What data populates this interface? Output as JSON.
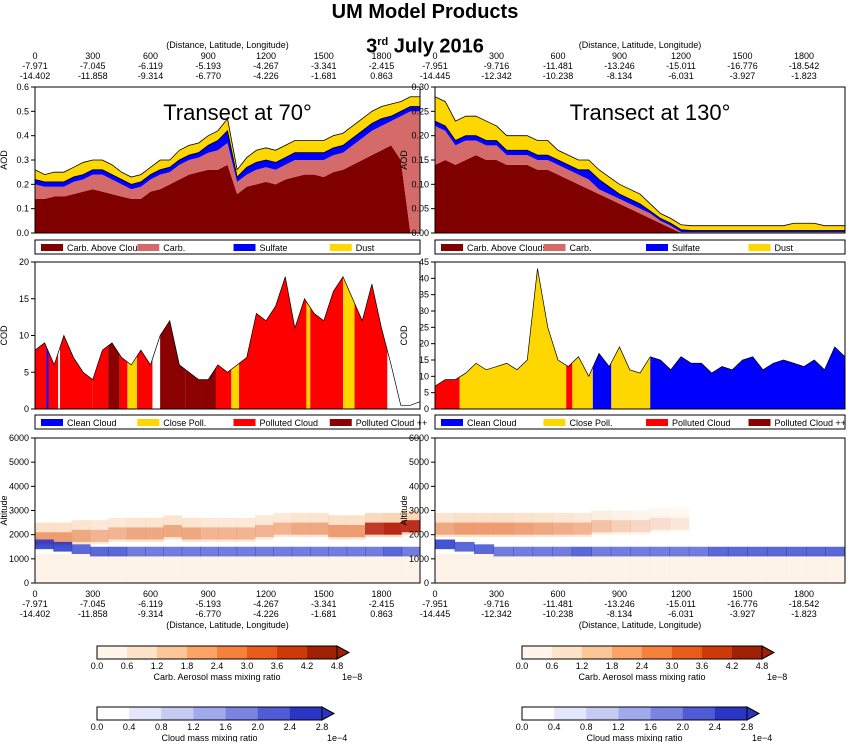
{
  "header": {
    "title": "UM Model Products",
    "date_day": "3",
    "date_suffix": "rd",
    "date_rest": "July 2016"
  },
  "axis_headers": {
    "top_label": "(Distance, Latitude, Longitude)",
    "left": {
      "distance": [
        "0",
        "300",
        "600",
        "900",
        "1200",
        "1500",
        "1800"
      ],
      "latitude": [
        "-7.971",
        "-7.045",
        "-6.119",
        "-5.193",
        "-4.267",
        "-3.341",
        "-2.415"
      ],
      "longitude": [
        "-14.402",
        "-11.858",
        "-9.314",
        "-6.770",
        "-4.226",
        "-1.681",
        "0.863"
      ]
    },
    "right": {
      "distance": [
        "0",
        "300",
        "600",
        "900",
        "1200",
        "1500",
        "1800"
      ],
      "latitude": [
        "-7.951",
        "-9.716",
        "-11.481",
        "-13.246",
        "-15.011",
        "-16.776",
        "-18.542"
      ],
      "longitude": [
        "-14.445",
        "-12.342",
        "-10.238",
        "-8.134",
        "-6.031",
        "-3.927",
        "-1.823"
      ]
    }
  },
  "colors": {
    "carb_above": "#800000",
    "carb": "#d46a6a",
    "sulfate": "#0000ff",
    "dust": "#ffd700",
    "clean_cloud": "#0000ff",
    "close_poll": "#ffd700",
    "polluted": "#ff0000",
    "polluted_pp": "#8b0000"
  },
  "colorbars": {
    "carb": {
      "label": "Carb. Aerosol mass mixing ratio",
      "ticks": [
        "0.0",
        "0.6",
        "1.2",
        "1.8",
        "2.4",
        "3.0",
        "3.6",
        "4.2",
        "4.8"
      ],
      "exp": "1e−8"
    },
    "cloud": {
      "label": "Cloud mass mixing ratio",
      "ticks": [
        "0.0",
        "0.4",
        "0.8",
        "1.2",
        "1.6",
        "2.0",
        "2.4",
        "2.8"
      ],
      "exp": "1e−4"
    }
  },
  "chart_data": [
    {
      "type": "area",
      "title": "Transect at 70°",
      "xlabel": "",
      "ylabel": "AOD",
      "xlim": [
        0,
        2000
      ],
      "ylim": [
        0,
        0.6
      ],
      "yticks": [
        "0.0",
        "0.1",
        "0.2",
        "0.3",
        "0.4",
        "0.5",
        "0.6"
      ],
      "legend": [
        "Carb. Above Clouds",
        "Carb.",
        "Sulfate",
        "Dust"
      ],
      "x": [
        0,
        50,
        100,
        150,
        200,
        250,
        300,
        350,
        400,
        450,
        500,
        550,
        600,
        650,
        700,
        750,
        800,
        850,
        900,
        950,
        1000,
        1050,
        1100,
        1150,
        1200,
        1250,
        1300,
        1350,
        1400,
        1450,
        1500,
        1550,
        1600,
        1650,
        1700,
        1750,
        1800,
        1850,
        1900,
        1950,
        2000
      ],
      "series": [
        {
          "name": "Carb. Above Clouds",
          "values": [
            0.14,
            0.14,
            0.15,
            0.15,
            0.16,
            0.17,
            0.18,
            0.17,
            0.16,
            0.15,
            0.14,
            0.14,
            0.17,
            0.18,
            0.2,
            0.22,
            0.24,
            0.25,
            0.26,
            0.26,
            0.28,
            0.16,
            0.19,
            0.2,
            0.21,
            0.2,
            0.22,
            0.23,
            0.24,
            0.24,
            0.23,
            0.25,
            0.26,
            0.28,
            0.3,
            0.32,
            0.34,
            0.36,
            0.3,
            0,
            0
          ]
        },
        {
          "name": "Carb.",
          "values": [
            0.06,
            0.05,
            0.04,
            0.04,
            0.05,
            0.05,
            0.06,
            0.07,
            0.06,
            0.05,
            0.04,
            0.05,
            0.05,
            0.06,
            0.05,
            0.06,
            0.06,
            0.06,
            0.07,
            0.08,
            0.09,
            0.05,
            0.05,
            0.06,
            0.06,
            0.06,
            0.06,
            0.07,
            0.06,
            0.06,
            0.07,
            0.07,
            0.07,
            0.08,
            0.09,
            0.1,
            0.1,
            0.1,
            0.18,
            0.5,
            0.5
          ]
        },
        {
          "name": "Sulfate",
          "values": [
            0.02,
            0.02,
            0.02,
            0.02,
            0.02,
            0.02,
            0.02,
            0.02,
            0.02,
            0.02,
            0.02,
            0.02,
            0.02,
            0.02,
            0.02,
            0.02,
            0.02,
            0.02,
            0.03,
            0.04,
            0.05,
            0.02,
            0.03,
            0.03,
            0.03,
            0.03,
            0.03,
            0.03,
            0.03,
            0.03,
            0.03,
            0.03,
            0.03,
            0.03,
            0.03,
            0.03,
            0.03,
            0.02,
            0.02,
            0.02,
            0.02
          ]
        },
        {
          "name": "Dust",
          "values": [
            0.04,
            0.03,
            0.04,
            0.04,
            0.04,
            0.05,
            0.04,
            0.04,
            0.04,
            0.03,
            0.03,
            0.03,
            0.03,
            0.04,
            0.03,
            0.04,
            0.04,
            0.04,
            0.04,
            0.04,
            0.05,
            0.03,
            0.04,
            0.05,
            0.05,
            0.05,
            0.05,
            0.05,
            0.05,
            0.05,
            0.05,
            0.05,
            0.05,
            0.05,
            0.05,
            0.05,
            0.05,
            0.05,
            0.04,
            0.04,
            0.04
          ]
        }
      ]
    },
    {
      "type": "area",
      "title": "Transect at 130°",
      "xlabel": "",
      "ylabel": "AOD",
      "xlim": [
        0,
        2000
      ],
      "ylim": [
        0,
        0.3
      ],
      "yticks": [
        "0.00",
        "0.05",
        "0.10",
        "0.15",
        "0.20",
        "0.25",
        "0.30"
      ],
      "legend": [
        "Carb. Above Clouds",
        "Carb.",
        "Sulfate",
        "Dust"
      ],
      "x": [
        0,
        50,
        100,
        150,
        200,
        250,
        300,
        350,
        400,
        450,
        500,
        550,
        600,
        650,
        700,
        750,
        800,
        850,
        900,
        950,
        1000,
        1050,
        1100,
        1150,
        1200,
        1250,
        1300,
        1350,
        1400,
        1450,
        1500,
        1550,
        1600,
        1650,
        1700,
        1750,
        1800,
        1850,
        1900,
        1950,
        2000
      ],
      "series": [
        {
          "name": "Carb. Above Clouds",
          "values": [
            0.14,
            0.15,
            0.14,
            0.15,
            0.16,
            0.15,
            0.15,
            0.14,
            0.14,
            0.14,
            0.13,
            0.13,
            0.12,
            0.11,
            0.1,
            0.09,
            0.08,
            0.07,
            0.06,
            0.05,
            0.04,
            0.03,
            0.02,
            0.01,
            0,
            0,
            0,
            0,
            0,
            0,
            0,
            0,
            0,
            0,
            0,
            0,
            0,
            0,
            0,
            0,
            0
          ]
        },
        {
          "name": "Carb.",
          "values": [
            0.08,
            0.06,
            0.04,
            0.04,
            0.03,
            0.03,
            0.03,
            0.02,
            0.02,
            0.02,
            0.02,
            0.02,
            0.02,
            0.02,
            0.02,
            0.02,
            0.01,
            0.01,
            0.01,
            0.01,
            0.01,
            0.01,
            0.005,
            0.005,
            0.002,
            0.002,
            0.002,
            0.002,
            0.002,
            0.002,
            0.002,
            0.002,
            0.002,
            0.002,
            0.002,
            0.002,
            0.002,
            0.002,
            0.002,
            0.002,
            0.002
          ]
        },
        {
          "name": "Sulfate",
          "values": [
            0.01,
            0.01,
            0.01,
            0.01,
            0.01,
            0.01,
            0.01,
            0.01,
            0.01,
            0.01,
            0.01,
            0.01,
            0.01,
            0.01,
            0.01,
            0.02,
            0.02,
            0.015,
            0.01,
            0.01,
            0.01,
            0.005,
            0.005,
            0.005,
            0.005,
            0.003,
            0.003,
            0.003,
            0.003,
            0.003,
            0.003,
            0.003,
            0.003,
            0.003,
            0.003,
            0.003,
            0.003,
            0.003,
            0.003,
            0.003,
            0.003
          ]
        },
        {
          "name": "Dust",
          "values": [
            0.05,
            0.05,
            0.04,
            0.04,
            0.04,
            0.04,
            0.03,
            0.03,
            0.03,
            0.03,
            0.03,
            0.03,
            0.02,
            0.02,
            0.02,
            0.02,
            0.02,
            0.02,
            0.02,
            0.02,
            0.02,
            0.015,
            0.01,
            0.01,
            0.01,
            0.01,
            0.01,
            0.01,
            0.01,
            0.01,
            0.01,
            0.01,
            0.01,
            0.01,
            0.01,
            0.015,
            0.015,
            0.015,
            0.01,
            0.01,
            0.01
          ]
        }
      ]
    },
    {
      "type": "area",
      "title": "",
      "xlabel": "",
      "ylabel": "COD",
      "xlim": [
        0,
        2000
      ],
      "ylim": [
        0,
        20
      ],
      "yticks": [
        "0",
        "5",
        "10",
        "15",
        "20"
      ],
      "legend": [
        "Clean Cloud",
        "Close Poll.",
        "Polluted Cloud",
        "Polluted Cloud ++"
      ],
      "x": [
        0,
        50,
        100,
        150,
        200,
        250,
        300,
        350,
        400,
        450,
        500,
        550,
        600,
        650,
        700,
        750,
        800,
        850,
        900,
        950,
        1000,
        1050,
        1100,
        1150,
        1200,
        1250,
        1300,
        1350,
        1400,
        1450,
        1500,
        1550,
        1600,
        1650,
        1700,
        1750,
        1800,
        1850,
        1900,
        1950,
        2000
      ],
      "values": [
        8,
        9,
        6,
        10,
        7,
        5,
        4,
        8,
        9,
        7,
        6,
        8,
        6,
        10,
        12,
        6,
        5,
        4,
        4,
        6,
        5,
        6,
        7,
        13,
        12,
        14,
        18,
        11,
        15,
        13,
        12,
        16,
        18,
        15,
        12,
        17,
        11,
        6,
        0.5,
        0.5,
        1
      ],
      "segments": [
        {
          "from": 0,
          "to": 60,
          "cls": "Polluted Cloud"
        },
        {
          "from": 60,
          "to": 70,
          "cls": "Clean Cloud"
        },
        {
          "from": 70,
          "to": 120,
          "cls": "Polluted Cloud"
        },
        {
          "from": 130,
          "to": 300,
          "cls": "Polluted Cloud"
        },
        {
          "from": 300,
          "to": 380,
          "cls": "Polluted Cloud"
        },
        {
          "from": 380,
          "to": 440,
          "cls": "Polluted Cloud ++"
        },
        {
          "from": 440,
          "to": 480,
          "cls": "Polluted Cloud"
        },
        {
          "from": 480,
          "to": 530,
          "cls": "Close Poll."
        },
        {
          "from": 530,
          "to": 610,
          "cls": "Polluted Cloud"
        },
        {
          "from": 650,
          "to": 780,
          "cls": "Polluted Cloud ++"
        },
        {
          "from": 780,
          "to": 870,
          "cls": "Polluted Cloud ++"
        },
        {
          "from": 870,
          "to": 940,
          "cls": "Polluted Cloud ++"
        },
        {
          "from": 940,
          "to": 1020,
          "cls": "Polluted Cloud"
        },
        {
          "from": 1020,
          "to": 1060,
          "cls": "Close Poll."
        },
        {
          "from": 1060,
          "to": 1410,
          "cls": "Polluted Cloud"
        },
        {
          "from": 1410,
          "to": 1430,
          "cls": "Close Poll."
        },
        {
          "from": 1430,
          "to": 1600,
          "cls": "Polluted Cloud"
        },
        {
          "from": 1600,
          "to": 1660,
          "cls": "Close Poll."
        },
        {
          "from": 1660,
          "to": 1830,
          "cls": "Polluted Cloud"
        }
      ]
    },
    {
      "type": "area",
      "title": "",
      "xlabel": "",
      "ylabel": "COD",
      "xlim": [
        0,
        2000
      ],
      "ylim": [
        0,
        45
      ],
      "yticks": [
        "0",
        "5",
        "10",
        "15",
        "20",
        "25",
        "30",
        "35",
        "40",
        "45"
      ],
      "legend": [
        "Clean Cloud",
        "Close Poll.",
        "Polluted Cloud",
        "Polluted Cloud ++"
      ],
      "x": [
        0,
        50,
        100,
        150,
        200,
        250,
        300,
        350,
        400,
        450,
        500,
        550,
        600,
        650,
        700,
        750,
        800,
        850,
        900,
        950,
        1000,
        1050,
        1100,
        1150,
        1200,
        1250,
        1300,
        1350,
        1400,
        1450,
        1500,
        1550,
        1600,
        1650,
        1700,
        1750,
        1800,
        1850,
        1900,
        1950,
        2000
      ],
      "values": [
        7,
        9,
        9,
        11,
        14,
        12,
        13,
        14,
        12,
        15,
        43,
        25,
        15,
        13,
        16,
        10,
        17,
        13,
        19,
        12,
        11,
        16,
        15,
        12,
        16,
        14,
        14,
        11,
        13,
        12,
        15,
        16,
        12,
        14,
        15,
        14,
        13,
        15,
        12,
        19,
        16
      ],
      "segments": [
        {
          "from": 0,
          "to": 120,
          "cls": "Polluted Cloud"
        },
        {
          "from": 120,
          "to": 640,
          "cls": "Close Poll."
        },
        {
          "from": 640,
          "to": 670,
          "cls": "Polluted Cloud"
        },
        {
          "from": 670,
          "to": 770,
          "cls": "Close Poll."
        },
        {
          "from": 770,
          "to": 860,
          "cls": "Clean Cloud"
        },
        {
          "from": 860,
          "to": 1050,
          "cls": "Close Poll."
        },
        {
          "from": 1050,
          "to": 2000,
          "cls": "Clean Cloud"
        }
      ]
    },
    {
      "type": "heatmap",
      "title": "",
      "xlabel": "",
      "ylabel": "Altitude",
      "xlim": [
        0,
        2000
      ],
      "ylim": [
        0,
        6000
      ],
      "yticks": [
        "0",
        "1000",
        "2000",
        "3000",
        "4000",
        "5000",
        "6000"
      ],
      "aerosol_layer": {
        "base_km": [
          1.8,
          1.8,
          1.9,
          1.9,
          2.0,
          2.0,
          2.0,
          2.1,
          2.0,
          2.0,
          2.0,
          2.0,
          2.1,
          2.2,
          2.2,
          2.2,
          2.1,
          2.1,
          2.2,
          2.2,
          2.3
        ],
        "intensity": [
          0.7,
          0.7,
          0.6,
          0.5,
          0.5,
          0.6,
          0.6,
          0.6,
          0.6,
          0.5,
          0.5,
          0.5,
          0.5,
          0.5,
          0.6,
          0.6,
          0.7,
          0.7,
          0.85,
          0.95,
          0.9
        ]
      },
      "cloud_layer": {
        "top_m": [
          1800,
          1700,
          1600,
          1500,
          1500,
          1500,
          1500,
          1500,
          1500,
          1500,
          1500,
          1500,
          1500,
          1500,
          1500,
          1500,
          1500,
          1500,
          1500,
          1500,
          1500
        ],
        "intensity": [
          0.8,
          0.8,
          0.7,
          0.7,
          0.7,
          0.6,
          0.6,
          0.6,
          0.6,
          0.6,
          0.6,
          0.6,
          0.6,
          0.6,
          0.6,
          0.6,
          0.6,
          0.6,
          0.6,
          0.7,
          0.6
        ]
      }
    },
    {
      "type": "heatmap",
      "title": "",
      "xlabel": "",
      "ylabel": "Altitude",
      "xlim": [
        0,
        2000
      ],
      "ylim": [
        0,
        6000
      ],
      "yticks": [
        "0",
        "1000",
        "2000",
        "3000",
        "4000",
        "5000",
        "6000"
      ],
      "aerosol_layer": {
        "base_km": [
          2.2,
          2.2,
          2.2,
          2.2,
          2.2,
          2.2,
          2.2,
          2.2,
          2.3,
          2.3,
          2.3,
          2.4,
          2.4,
          0,
          0,
          0,
          0,
          0,
          0,
          0,
          0
        ],
        "intensity": [
          0.6,
          0.7,
          0.7,
          0.7,
          0.65,
          0.6,
          0.55,
          0.5,
          0.4,
          0.3,
          0.25,
          0.2,
          0.15,
          0,
          0,
          0,
          0,
          0,
          0,
          0,
          0
        ]
      },
      "cloud_layer": {
        "top_m": [
          1800,
          1700,
          1600,
          1500,
          1500,
          1500,
          1500,
          1500,
          1500,
          1500,
          1500,
          1500,
          1500,
          1500,
          1500,
          1500,
          1500,
          1500,
          1500,
          1500,
          1500
        ],
        "intensity": [
          0.8,
          0.7,
          0.7,
          0.6,
          0.6,
          0.6,
          0.6,
          0.7,
          0.6,
          0.6,
          0.6,
          0.6,
          0.6,
          0.6,
          0.7,
          0.7,
          0.7,
          0.7,
          0.7,
          0.7,
          0.7
        ]
      }
    }
  ]
}
